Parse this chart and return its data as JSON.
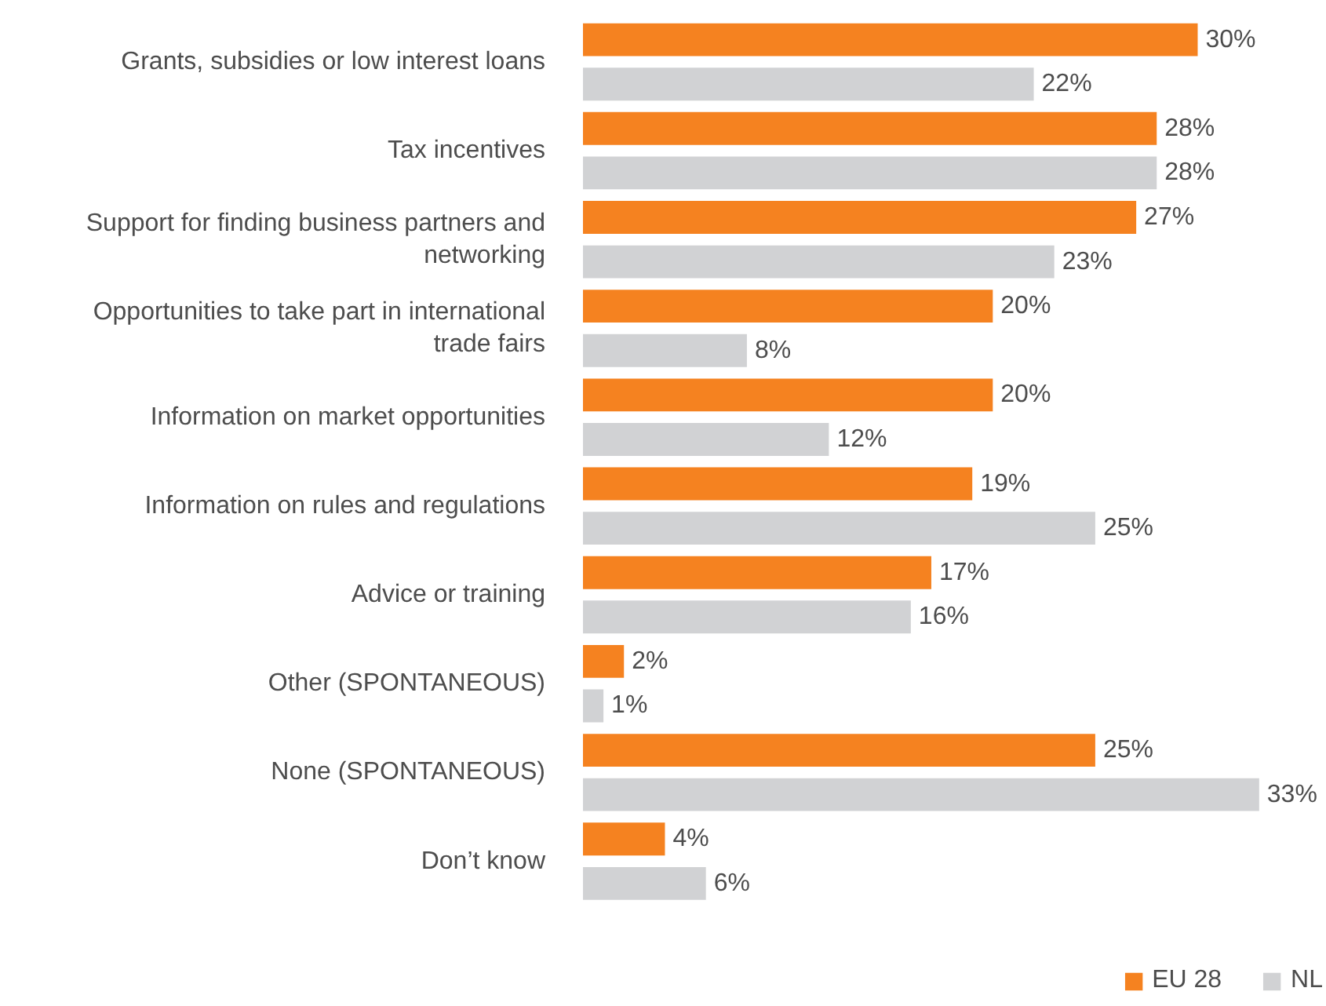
{
  "chart_data": {
    "type": "bar",
    "orientation": "horizontal",
    "legend": "bottom right",
    "grid": false,
    "categories": [
      "Grants, subsidies or low interest loans",
      "Tax incentives",
      "Support for finding business partners and networking",
      "Opportunities to take part in international trade fairs",
      "Information on market opportunities",
      "Information on rules and regulations",
      "Advice or training",
      "Other (SPONTANEOUS)",
      "None (SPONTANEOUS)",
      "Don’t know"
    ],
    "series": [
      {
        "name": "EU 28",
        "color": "#f58220",
        "values": [
          30,
          28,
          27,
          20,
          20,
          19,
          17,
          2,
          25,
          4
        ],
        "value_labels": [
          "30%",
          "28%",
          "27%",
          "20%",
          "20%",
          "19%",
          "17%",
          "2%",
          "25%",
          "4%"
        ]
      },
      {
        "name": "NL",
        "color": "#d1d2d4",
        "values": [
          22,
          28,
          23,
          8,
          12,
          25,
          16,
          1,
          33,
          6
        ],
        "value_labels": [
          "22%",
          "28%",
          "23%",
          "8%",
          "12%",
          "25%",
          "16%",
          "1%",
          "33%",
          "6%"
        ]
      }
    ]
  }
}
